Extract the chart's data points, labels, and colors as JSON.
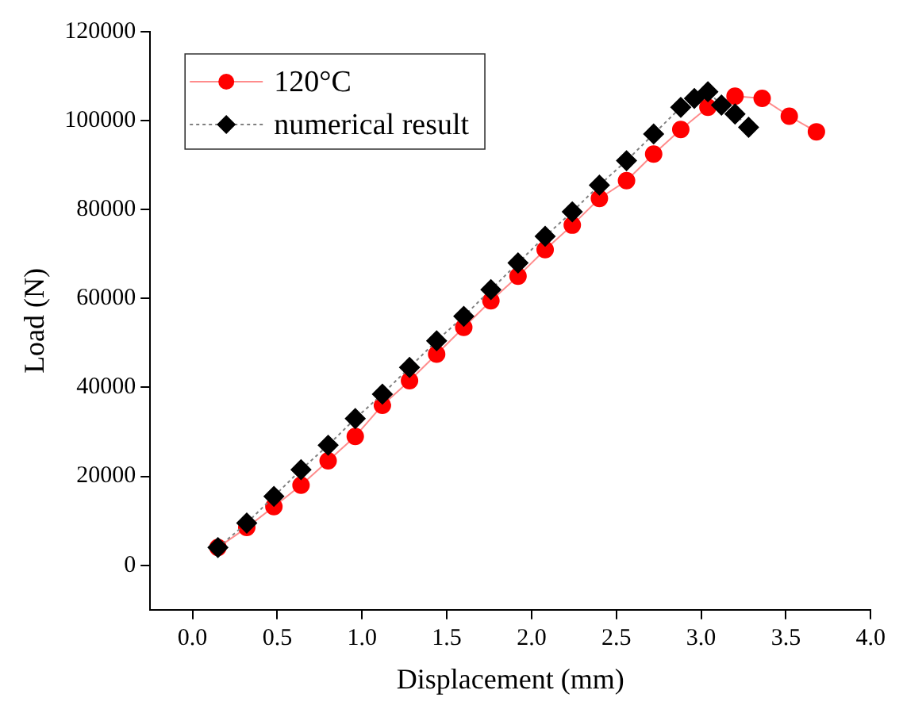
{
  "chart_data": {
    "type": "line",
    "xlabel": "Displacement (mm)",
    "ylabel": "Load (N)",
    "xlim": [
      -0.25,
      4.0
    ],
    "ylim": [
      -10000,
      120000
    ],
    "xticks": [
      {
        "value": 0,
        "label": "0.0"
      },
      0.5,
      {
        "value": 1,
        "label": "1.0"
      },
      1.5,
      {
        "value": 2,
        "label": "2.0"
      },
      2.5,
      {
        "value": 3,
        "label": "3.0"
      },
      3.5,
      {
        "value": 4,
        "label": "4.0"
      }
    ],
    "yticks": [
      0,
      20000,
      40000,
      60000,
      80000,
      100000,
      120000
    ],
    "grid": false,
    "legend": "top left",
    "series": [
      {
        "name": "120°C",
        "color": "#ff0000",
        "marker": "circle",
        "line_style": "solid",
        "x": [
          0.15,
          0.32,
          0.48,
          0.64,
          0.8,
          0.96,
          1.12,
          1.28,
          1.44,
          1.6,
          1.76,
          1.92,
          2.08,
          2.24,
          2.4,
          2.56,
          2.72,
          2.88,
          3.04,
          3.2,
          3.36,
          3.52,
          3.68
        ],
        "values": [
          4000,
          8500,
          13200,
          18000,
          23500,
          29000,
          36000,
          41500,
          47500,
          53500,
          59500,
          65000,
          71000,
          76500,
          82500,
          86500,
          92500,
          98000,
          103000,
          105500,
          105000,
          101000,
          97500
        ]
      },
      {
        "name": "numerical result",
        "color": "#000000",
        "marker": "diamond",
        "line_style": "dotted",
        "x": [
          0.15,
          0.32,
          0.48,
          0.64,
          0.8,
          0.96,
          1.12,
          1.28,
          1.44,
          1.6,
          1.76,
          1.92,
          2.08,
          2.24,
          2.4,
          2.56,
          2.72,
          2.88,
          2.96,
          3.04,
          3.12,
          3.2,
          3.28
        ],
        "values": [
          4000,
          9500,
          15500,
          21500,
          27000,
          33000,
          38500,
          44500,
          50500,
          56000,
          62000,
          68000,
          74000,
          79500,
          85500,
          91000,
          97000,
          103000,
          105000,
          106500,
          103500,
          101500,
          98500
        ]
      }
    ]
  }
}
